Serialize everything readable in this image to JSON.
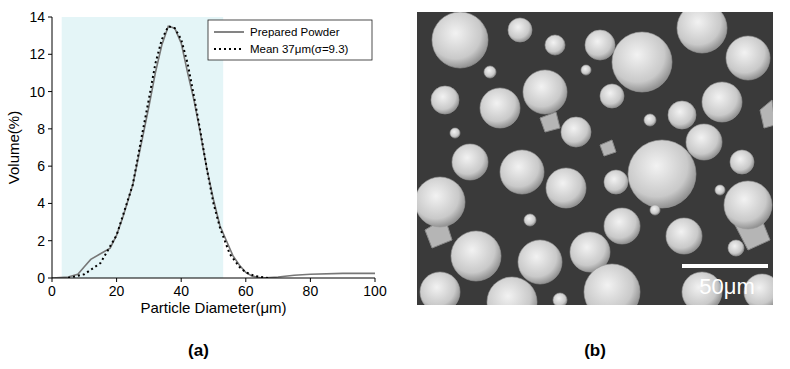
{
  "chart_data": {
    "type": "line",
    "x_label": "Particle Diameter(μm)",
    "y_label": "Volume(%)",
    "xlim": [
      0,
      100
    ],
    "xticks": [
      0,
      20,
      40,
      60,
      80,
      100
    ],
    "ylim": [
      0,
      14
    ],
    "yticks": [
      0,
      2,
      4,
      6,
      8,
      10,
      12,
      14
    ],
    "legend": "upper right",
    "highlight_range": [
      3,
      53
    ],
    "series": [
      {
        "name": "Prepared Powder",
        "color": "#777777",
        "line_style": "solid",
        "x": [
          0,
          5,
          8,
          10,
          12,
          15,
          18,
          20,
          22,
          25,
          28,
          30,
          32,
          34,
          36,
          38,
          40,
          42,
          44,
          46,
          48,
          50,
          52,
          54,
          56,
          58,
          60,
          62,
          65,
          70,
          75,
          80,
          90,
          100
        ],
        "values": [
          0,
          0.05,
          0.2,
          0.6,
          1.0,
          1.3,
          1.6,
          2.3,
          3.3,
          5.0,
          7.5,
          9.2,
          11.0,
          12.5,
          13.5,
          13.4,
          12.6,
          11.0,
          9.5,
          7.7,
          5.8,
          4.2,
          2.8,
          2.0,
          1.2,
          0.7,
          0.3,
          0.1,
          0.0,
          0.05,
          0.15,
          0.2,
          0.25,
          0.25
        ]
      },
      {
        "name": "Mean 37μm(σ=9.3)",
        "color": "#000000",
        "line_style": "dotted",
        "x": [
          5,
          10,
          15,
          20,
          25,
          28,
          30,
          32,
          34,
          36,
          38,
          40,
          42,
          44,
          46,
          48,
          50,
          52,
          55,
          58,
          60,
          63,
          67
        ],
        "values": [
          0.0,
          0.2,
          0.8,
          2.3,
          5.0,
          7.8,
          9.6,
          11.5,
          12.8,
          13.5,
          13.4,
          12.8,
          11.5,
          9.7,
          7.8,
          5.8,
          4.0,
          2.7,
          1.3,
          0.6,
          0.3,
          0.1,
          0.0
        ]
      }
    ]
  },
  "panel_labels": [
    "(a)",
    "(b)"
  ],
  "image": {
    "scale_bar_label": "50μm"
  }
}
